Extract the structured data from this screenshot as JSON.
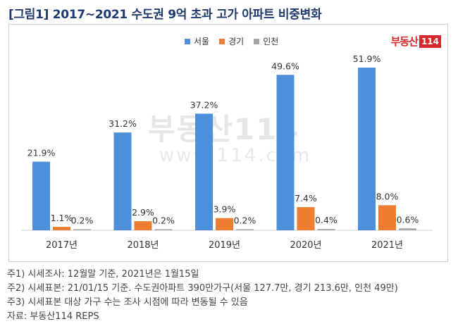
{
  "title": "[그림1] 2017~2021 수도권 9억 초과 고가 아파트 비중변화",
  "logo": {
    "text": "부동산",
    "number": "114"
  },
  "watermark": {
    "brand": "부동산114",
    "url": "www.114.com"
  },
  "colors": {
    "seoul": "#4d8fdb",
    "gyeonggi": "#ed7d31",
    "incheon": "#a5a5a5"
  },
  "chart_data": {
    "type": "bar",
    "categories": [
      "2017년",
      "2018년",
      "2019년",
      "2020년",
      "2021년"
    ],
    "series": [
      {
        "name": "서울",
        "values": [
          21.9,
          31.2,
          37.2,
          49.6,
          51.9
        ],
        "labels": [
          "21.9%",
          "31.2%",
          "37.2%",
          "49.6%",
          "51.9%"
        ]
      },
      {
        "name": "경기",
        "values": [
          1.1,
          2.9,
          3.9,
          7.4,
          8.0
        ],
        "labels": [
          "1.1%",
          "2.9%",
          "3.9%",
          "7.4%",
          "8.0%"
        ]
      },
      {
        "name": "인천",
        "values": [
          0.2,
          0.2,
          0.2,
          0.4,
          0.6
        ],
        "labels": [
          "0.2%",
          "0.2%",
          "0.2%",
          "0.4%",
          "0.6%"
        ]
      }
    ],
    "ylim": [
      0,
      60
    ],
    "legend_position": "top-center",
    "grid": false
  },
  "notes": [
    "주1) 시세조사: 12월말 기준, 2021년은 1월15일",
    "주2) 시세표본: 21/01/15 기준. 수도권아파트 390만가구(서울 127.7만, 경기 213.6만, 인천 49만)",
    "주3) 시세표본 대상 가구 수는 조사 시점에 따라 변동될 수 있음",
    "자료: 부동산114 REPS"
  ]
}
